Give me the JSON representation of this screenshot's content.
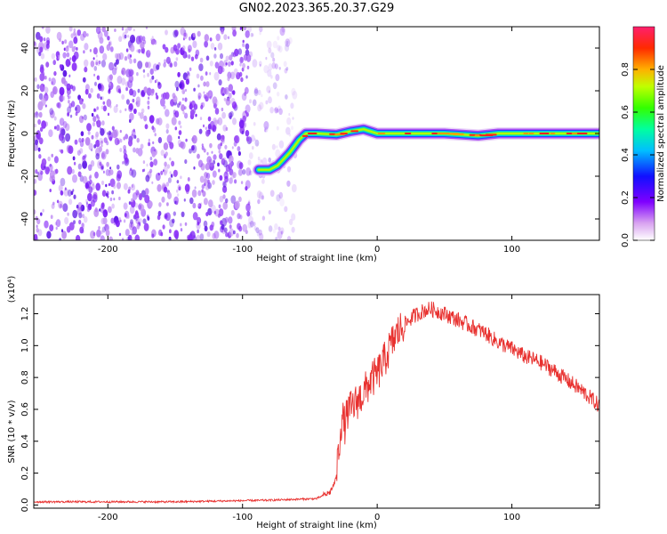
{
  "title": "GN02.2023.365.20.37.G29",
  "chart_data": [
    {
      "type": "heatmap",
      "xlabel": "Height of straight line (km)",
      "ylabel": "Frequency (Hz)",
      "xlim": [
        -255,
        165
      ],
      "ylim": [
        -50,
        50
      ],
      "xticks": [
        -200,
        -100,
        0,
        100
      ],
      "yticks": [
        -40,
        -20,
        0,
        20,
        40
      ],
      "colorbar": {
        "label": "Normalized spectral amplitude",
        "range": [
          0,
          1
        ],
        "ticks": [
          "0.0",
          "0.2",
          "0.4",
          "0.6",
          "0.8"
        ]
      },
      "ridge": {
        "x": [
          -88,
          -80,
          -74,
          -65,
          -58,
          -53,
          -45,
          -30,
          -20,
          -10,
          0,
          20,
          50,
          75,
          90,
          120,
          165
        ],
        "y": [
          -17,
          -17,
          -15,
          -9,
          -3,
          0,
          0,
          -0.5,
          1,
          2,
          0,
          0,
          0,
          -1,
          0,
          0,
          0
        ]
      },
      "noise_region_x": [
        -255,
        -60
      ]
    },
    {
      "type": "line",
      "xlabel": "Height of straight line (km)",
      "ylabel": "SNR (10 * v/v)",
      "y_multiplier": "(x10⁴)",
      "xlim": [
        -255,
        165
      ],
      "ylim": [
        -0.02,
        1.32
      ],
      "xticks": [
        -200,
        -100,
        0,
        100
      ],
      "yticks": [
        "0.0",
        "0.2",
        "0.4",
        "0.6",
        "0.8",
        "1.0",
        "1.2"
      ],
      "series": [
        {
          "color": "#e8312f",
          "x": [
            -255,
            -150,
            -80,
            -45,
            -35,
            -31,
            -29,
            -27,
            -26,
            -24,
            -22,
            -20,
            -18,
            -15,
            -10,
            -5,
            0,
            5,
            10,
            15,
            20,
            25,
            30,
            35,
            40,
            50,
            60,
            70,
            80,
            90,
            100,
            110,
            120,
            130,
            140,
            150,
            160,
            165
          ],
          "y": [
            0.02,
            0.02,
            0.03,
            0.04,
            0.08,
            0.15,
            0.3,
            0.5,
            0.55,
            0.5,
            0.58,
            0.6,
            0.62,
            0.65,
            0.7,
            0.78,
            0.82,
            0.9,
            1.0,
            1.08,
            1.13,
            1.17,
            1.2,
            1.22,
            1.23,
            1.2,
            1.16,
            1.12,
            1.08,
            1.02,
            0.98,
            0.93,
            0.9,
            0.85,
            0.79,
            0.73,
            0.66,
            0.62
          ]
        }
      ]
    }
  ]
}
